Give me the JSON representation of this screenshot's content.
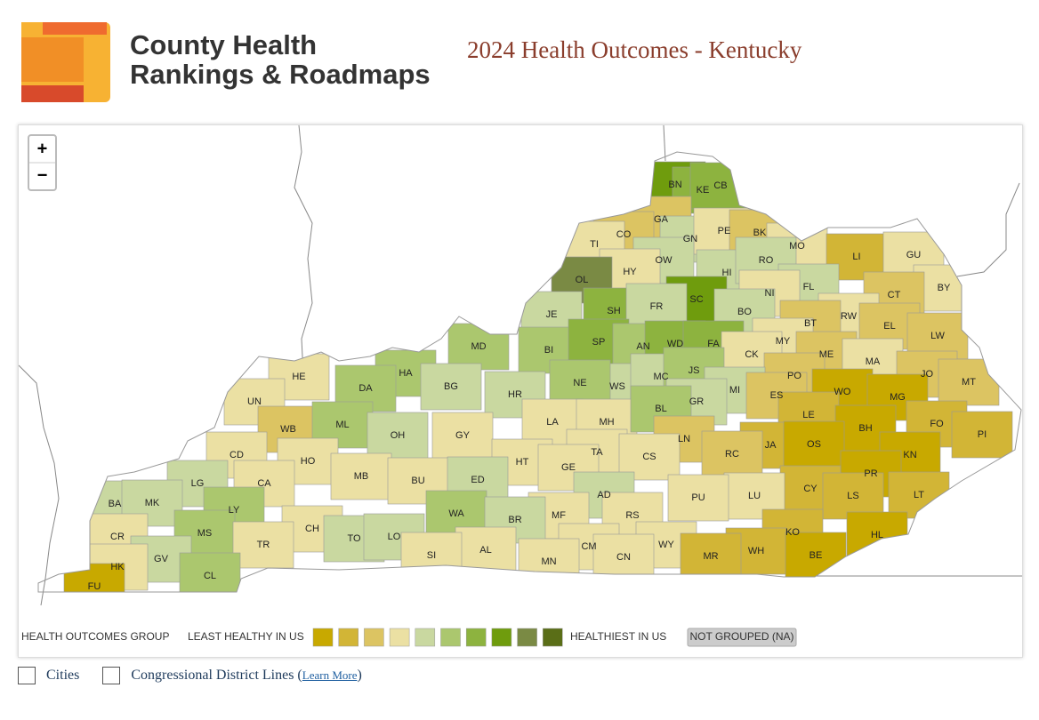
{
  "header": {
    "logo_lines": [
      "County Health",
      "Rankings & Roadmaps"
    ],
    "title": "2024 Health Outcomes - Kentucky"
  },
  "controls": {
    "zoom_in": "+",
    "zoom_out": "−"
  },
  "legend": {
    "group_label": "HEALTH OUTCOMES GROUP",
    "low_label": "LEAST HEALTHY IN US",
    "high_label": "HEALTHIEST IN US",
    "na_label": "NOT GROUPED (NA)",
    "colors": [
      "#c8a900",
      "#d2b536",
      "#dcc462",
      "#ebe0a3",
      "#c9d8a0",
      "#abc76e",
      "#8db33f",
      "#6f9c0d",
      "#7a8a44",
      "#5a6e17"
    ]
  },
  "options": {
    "cities": "Cities",
    "districts": "Congressional District Lines (",
    "learn_more": "Learn More",
    "close_paren": ")"
  },
  "counties": [
    {
      "label": "BN",
      "color": "#6f9c0d"
    },
    {
      "label": "KE",
      "color": "#8db33f"
    },
    {
      "label": "CB",
      "color": "#8db33f"
    },
    {
      "label": "GA",
      "color": "#dcc462"
    },
    {
      "label": "CO",
      "color": "#dcc462"
    },
    {
      "label": "TI",
      "color": "#ebe0a3"
    },
    {
      "label": "GN",
      "color": "#c9d8a0"
    },
    {
      "label": "PE",
      "color": "#ebe0a3"
    },
    {
      "label": "BK",
      "color": "#dcc462"
    },
    {
      "label": "MO",
      "color": "#ebe0a3"
    },
    {
      "label": "LI",
      "color": "#d2b536"
    },
    {
      "label": "GU",
      "color": "#ebe0a3"
    },
    {
      "label": "BY",
      "color": "#ebe0a3"
    },
    {
      "label": "OW",
      "color": "#c9d8a0"
    },
    {
      "label": "HY",
      "color": "#ebe0a3"
    },
    {
      "label": "OL",
      "color": "#7a8a44"
    },
    {
      "label": "HI",
      "color": "#c9d8a0"
    },
    {
      "label": "RO",
      "color": "#c9d8a0"
    },
    {
      "label": "FL",
      "color": "#c9d8a0"
    },
    {
      "label": "NI",
      "color": "#ebe0a3"
    },
    {
      "label": "CT",
      "color": "#dcc462"
    },
    {
      "label": "SC",
      "color": "#6f9c0d"
    },
    {
      "label": "SH",
      "color": "#8db33f"
    },
    {
      "label": "FR",
      "color": "#c9d8a0"
    },
    {
      "label": "JE",
      "color": "#c9d8a0"
    },
    {
      "label": "BO",
      "color": "#c9d8a0"
    },
    {
      "label": "RW",
      "color": "#ebe0a3"
    },
    {
      "label": "BT",
      "color": "#dcc462"
    },
    {
      "label": "EL",
      "color": "#dcc462"
    },
    {
      "label": "LW",
      "color": "#dcc462"
    },
    {
      "label": "BI",
      "color": "#abc76e"
    },
    {
      "label": "SP",
      "color": "#8db33f"
    },
    {
      "label": "AN",
      "color": "#abc76e"
    },
    {
      "label": "WD",
      "color": "#8db33f"
    },
    {
      "label": "FA",
      "color": "#8db33f"
    },
    {
      "label": "MY",
      "color": "#ebe0a3"
    },
    {
      "label": "ME",
      "color": "#dcc462"
    },
    {
      "label": "MA",
      "color": "#ebe0a3"
    },
    {
      "label": "MD",
      "color": "#abc76e"
    },
    {
      "label": "CK",
      "color": "#ebe0a3"
    },
    {
      "label": "HE",
      "color": "#ebe0a3"
    },
    {
      "label": "HA",
      "color": "#abc76e"
    },
    {
      "label": "DA",
      "color": "#abc76e"
    },
    {
      "label": "BG",
      "color": "#c9d8a0"
    },
    {
      "label": "HR",
      "color": "#c9d8a0"
    },
    {
      "label": "WS",
      "color": "#c9d8a0"
    },
    {
      "label": "MC",
      "color": "#c9d8a0"
    },
    {
      "label": "JS",
      "color": "#abc76e"
    },
    {
      "label": "PO",
      "color": "#dcc462"
    },
    {
      "label": "JO",
      "color": "#dcc462"
    },
    {
      "label": "MT",
      "color": "#dcc462"
    },
    {
      "label": "NE",
      "color": "#abc76e"
    },
    {
      "label": "MI",
      "color": "#c9d8a0"
    },
    {
      "label": "ES",
      "color": "#dcc462"
    },
    {
      "label": "WO",
      "color": "#c8a900"
    },
    {
      "label": "MG",
      "color": "#c8a900"
    },
    {
      "label": "UN",
      "color": "#ebe0a3"
    },
    {
      "label": "GR",
      "color": "#c9d8a0"
    },
    {
      "label": "LA",
      "color": "#ebe0a3"
    },
    {
      "label": "MH",
      "color": "#ebe0a3"
    },
    {
      "label": "BL",
      "color": "#abc76e"
    },
    {
      "label": "LE",
      "color": "#d2b536"
    },
    {
      "label": "BH",
      "color": "#c8a900"
    },
    {
      "label": "FO",
      "color": "#d2b536"
    },
    {
      "label": "PI",
      "color": "#d2b536"
    },
    {
      "label": "WB",
      "color": "#dcc462"
    },
    {
      "label": "ML",
      "color": "#abc76e"
    },
    {
      "label": "OH",
      "color": "#c9d8a0"
    },
    {
      "label": "GY",
      "color": "#ebe0a3"
    },
    {
      "label": "JA",
      "color": "#d2b536"
    },
    {
      "label": "OS",
      "color": "#c8a900"
    },
    {
      "label": "LN",
      "color": "#dcc462"
    },
    {
      "label": "KN",
      "color": "#c8a900"
    },
    {
      "label": "TA",
      "color": "#ebe0a3"
    },
    {
      "label": "HT",
      "color": "#ebe0a3"
    },
    {
      "label": "CS",
      "color": "#ebe0a3"
    },
    {
      "label": "RC",
      "color": "#dcc462"
    },
    {
      "label": "CD",
      "color": "#ebe0a3"
    },
    {
      "label": "HO",
      "color": "#ebe0a3"
    },
    {
      "label": "GE",
      "color": "#ebe0a3"
    },
    {
      "label": "MB",
      "color": "#ebe0a3"
    },
    {
      "label": "BU",
      "color": "#ebe0a3"
    },
    {
      "label": "ED",
      "color": "#c9d8a0"
    },
    {
      "label": "CA",
      "color": "#ebe0a3"
    },
    {
      "label": "PR",
      "color": "#c8a900"
    },
    {
      "label": "CY",
      "color": "#d2b536"
    },
    {
      "label": "LG",
      "color": "#c9d8a0"
    },
    {
      "label": "AD",
      "color": "#c9d8a0"
    },
    {
      "label": "LS",
      "color": "#d2b536"
    },
    {
      "label": "LT",
      "color": "#d2b536"
    },
    {
      "label": "LU",
      "color": "#ebe0a3"
    },
    {
      "label": "PU",
      "color": "#ebe0a3"
    },
    {
      "label": "BA",
      "color": "#c9d8a0"
    },
    {
      "label": "MK",
      "color": "#c9d8a0"
    },
    {
      "label": "LY",
      "color": "#abc76e"
    },
    {
      "label": "WA",
      "color": "#abc76e"
    },
    {
      "label": "RS",
      "color": "#ebe0a3"
    },
    {
      "label": "MF",
      "color": "#ebe0a3"
    },
    {
      "label": "BR",
      "color": "#c9d8a0"
    },
    {
      "label": "CR",
      "color": "#ebe0a3"
    },
    {
      "label": "MS",
      "color": "#abc76e"
    },
    {
      "label": "KO",
      "color": "#d2b536"
    },
    {
      "label": "CH",
      "color": "#ebe0a3"
    },
    {
      "label": "HL",
      "color": "#c8a900"
    },
    {
      "label": "TR",
      "color": "#ebe0a3"
    },
    {
      "label": "TO",
      "color": "#c9d8a0"
    },
    {
      "label": "LO",
      "color": "#c9d8a0"
    },
    {
      "label": "GV",
      "color": "#c9d8a0"
    },
    {
      "label": "WY",
      "color": "#ebe0a3"
    },
    {
      "label": "WH",
      "color": "#d2b536"
    },
    {
      "label": "CM",
      "color": "#ebe0a3"
    },
    {
      "label": "AL",
      "color": "#ebe0a3"
    },
    {
      "label": "MR",
      "color": "#d2b536"
    },
    {
      "label": "HK",
      "color": "#ebe0a3"
    },
    {
      "label": "SI",
      "color": "#ebe0a3"
    },
    {
      "label": "BE",
      "color": "#c8a900"
    },
    {
      "label": "CN",
      "color": "#ebe0a3"
    },
    {
      "label": "MN",
      "color": "#ebe0a3"
    },
    {
      "label": "CL",
      "color": "#abc76e"
    },
    {
      "label": "FU",
      "color": "#c8a900"
    }
  ]
}
